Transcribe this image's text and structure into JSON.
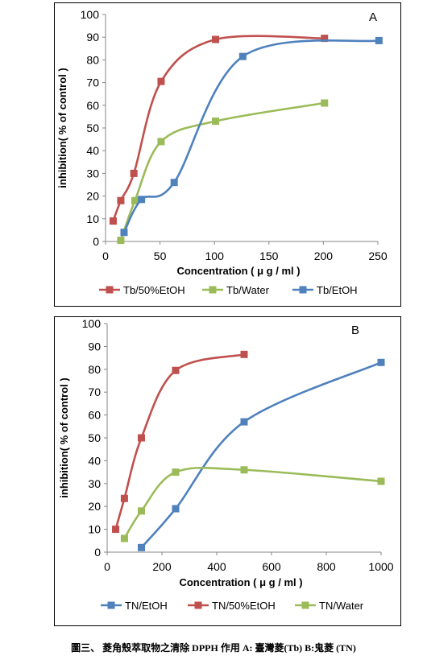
{
  "colors": {
    "red": "#C0504D",
    "green": "#9BBB59",
    "blue": "#4F81BD",
    "axis": "#868686",
    "frame": "#000000"
  },
  "chart_data": [
    {
      "type": "line",
      "panel_label": "A",
      "xlabel": "Concentration ( μ g / ml )",
      "ylabel": "inhibition( % of control )",
      "xlim": [
        0,
        250
      ],
      "ylim": [
        0,
        100
      ],
      "xticks": [
        0,
        50,
        100,
        150,
        200,
        250
      ],
      "yticks": [
        0,
        10,
        20,
        30,
        40,
        50,
        60,
        70,
        80,
        90,
        100
      ],
      "grid": false,
      "legend": "bottom",
      "series": [
        {
          "name": "Tb/50%EtOH",
          "color": "#C0504D",
          "x": [
            7,
            14,
            26,
            51,
            101,
            201
          ],
          "y": [
            9,
            18,
            30,
            70.5,
            89,
            89.5
          ]
        },
        {
          "name": "Tb/Water",
          "color": "#9BBB59",
          "x": [
            14,
            27,
            51,
            101,
            201
          ],
          "y": [
            0.5,
            18,
            44,
            53,
            61
          ]
        },
        {
          "name": "Tb/EtOH",
          "color": "#4F81BD",
          "x": [
            17,
            33,
            63,
            126,
            251
          ],
          "y": [
            4,
            18.5,
            26,
            81.5,
            88.5
          ]
        }
      ]
    },
    {
      "type": "line",
      "panel_label": "B",
      "xlabel": "Concentration ( μ g / ml )",
      "ylabel": "inhibition( % of control )",
      "xlim": [
        0,
        1000
      ],
      "ylim": [
        0,
        100
      ],
      "xticks": [
        0,
        200,
        400,
        600,
        800,
        1000
      ],
      "yticks": [
        0,
        10,
        20,
        30,
        40,
        50,
        60,
        70,
        80,
        90,
        100
      ],
      "grid": false,
      "legend": "bottom",
      "series": [
        {
          "name": "TN/EtOH",
          "color": "#4F81BD",
          "x": [
            125,
            250,
            500,
            1000
          ],
          "y": [
            2,
            19,
            57,
            83
          ]
        },
        {
          "name": "TN/50%EtOH",
          "color": "#C0504D",
          "x": [
            31,
            63,
            125,
            250,
            500
          ],
          "y": [
            10,
            23.5,
            50,
            79.5,
            86.5
          ]
        },
        {
          "name": "TN/Water",
          "color": "#9BBB59",
          "x": [
            63,
            125,
            250,
            500,
            1000
          ],
          "y": [
            6,
            18,
            35,
            36,
            31
          ]
        }
      ]
    }
  ],
  "caption": "圖三、 菱角殼萃取物之清除 DPPH 作用  A:  臺灣菱(Tb) B:鬼菱  (TN)"
}
